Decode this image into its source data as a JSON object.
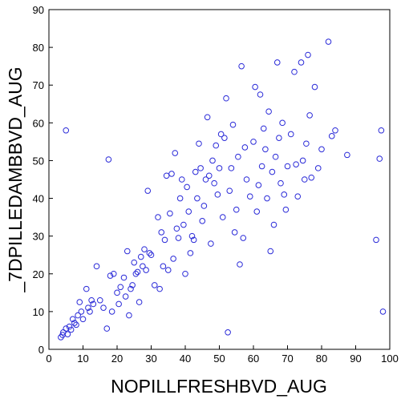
{
  "chart_data": {
    "type": "scatter",
    "xlabel": "NOPILLFRESHBVD_AUG",
    "ylabel": "_7DPILLEDAMBBVD_AUG",
    "xlim": [
      0,
      100
    ],
    "ylim": [
      0,
      90
    ],
    "xticks": [
      0,
      10,
      20,
      30,
      40,
      50,
      60,
      70,
      80,
      90,
      100
    ],
    "yticks": [
      0,
      10,
      20,
      30,
      40,
      50,
      60,
      70,
      80,
      90
    ],
    "grid": false,
    "marker": "circle-open",
    "marker_color": "#2a2ad8",
    "series": [
      {
        "points": [
          [
            3.5,
            3.2
          ],
          [
            4.0,
            3.8
          ],
          [
            4.2,
            4.5
          ],
          [
            5.0,
            5.5
          ],
          [
            5.5,
            4.0
          ],
          [
            6.0,
            6.0
          ],
          [
            6.5,
            5.2
          ],
          [
            7.0,
            8.0
          ],
          [
            7.5,
            7.0
          ],
          [
            8.0,
            6.5
          ],
          [
            8.5,
            9.0
          ],
          [
            9.0,
            12.5
          ],
          [
            9.5,
            10.0
          ],
          [
            10.0,
            8.0
          ],
          [
            11.0,
            16.0
          ],
          [
            11.5,
            11.0
          ],
          [
            12.0,
            10.0
          ],
          [
            12.5,
            13.0
          ],
          [
            13.0,
            12.0
          ],
          [
            14.0,
            22.0
          ],
          [
            15.0,
            13.0
          ],
          [
            16.0,
            11.0
          ],
          [
            17.0,
            5.5
          ],
          [
            17.5,
            50.3
          ],
          [
            18.0,
            19.5
          ],
          [
            18.5,
            10.0
          ],
          [
            19.0,
            20.0
          ],
          [
            20.0,
            15.0
          ],
          [
            20.5,
            12.0
          ],
          [
            21.0,
            16.5
          ],
          [
            22.0,
            19.0
          ],
          [
            22.5,
            14.0
          ],
          [
            23.0,
            26.0
          ],
          [
            23.5,
            9.0
          ],
          [
            24.0,
            16.0
          ],
          [
            24.5,
            17.0
          ],
          [
            25.0,
            23.0
          ],
          [
            25.5,
            20.0
          ],
          [
            26.0,
            20.5
          ],
          [
            26.5,
            12.5
          ],
          [
            27.0,
            24.5
          ],
          [
            27.5,
            22.0
          ],
          [
            28.0,
            26.5
          ],
          [
            28.5,
            21.0
          ],
          [
            29.0,
            42.0
          ],
          [
            29.5,
            25.5
          ],
          [
            30.0,
            25.0
          ],
          [
            31.0,
            17.0
          ],
          [
            32.0,
            35.0
          ],
          [
            32.5,
            16.0
          ],
          [
            33.0,
            31.0
          ],
          [
            33.5,
            22.0
          ],
          [
            34.0,
            29.0
          ],
          [
            34.5,
            46.0
          ],
          [
            35.0,
            21.0
          ],
          [
            35.5,
            36.0
          ],
          [
            36.0,
            46.5
          ],
          [
            36.5,
            24.0
          ],
          [
            37.0,
            52.0
          ],
          [
            37.5,
            32.0
          ],
          [
            38.0,
            29.5
          ],
          [
            38.5,
            40.0
          ],
          [
            39.0,
            45.0
          ],
          [
            39.5,
            33.0
          ],
          [
            40.0,
            20.0
          ],
          [
            40.5,
            43.0
          ],
          [
            41.0,
            36.5
          ],
          [
            41.5,
            25.5
          ],
          [
            42.0,
            30.0
          ],
          [
            42.5,
            29.0
          ],
          [
            43.0,
            47.0
          ],
          [
            43.5,
            40.0
          ],
          [
            44.0,
            54.5
          ],
          [
            44.5,
            48.0
          ],
          [
            45.0,
            34.0
          ],
          [
            45.5,
            38.0
          ],
          [
            46.0,
            45.0
          ],
          [
            46.5,
            61.5
          ],
          [
            47.0,
            46.0
          ],
          [
            47.5,
            28.0
          ],
          [
            48.0,
            50.0
          ],
          [
            48.5,
            44.0
          ],
          [
            49.0,
            54.0
          ],
          [
            49.5,
            41.0
          ],
          [
            50.0,
            48.0
          ],
          [
            50.5,
            57.0
          ],
          [
            51.0,
            35.0
          ],
          [
            51.5,
            56.0
          ],
          [
            52.0,
            66.5
          ],
          [
            52.5,
            4.5
          ],
          [
            53.0,
            42.0
          ],
          [
            53.5,
            48.0
          ],
          [
            54.0,
            59.5
          ],
          [
            54.5,
            31.0
          ],
          [
            55.0,
            37.0
          ],
          [
            55.5,
            51.0
          ],
          [
            56.0,
            22.5
          ],
          [
            56.5,
            75.0
          ],
          [
            57.0,
            29.5
          ],
          [
            57.5,
            53.5
          ],
          [
            58.0,
            45.0
          ],
          [
            59.0,
            40.5
          ],
          [
            60.0,
            55.0
          ],
          [
            60.5,
            69.5
          ],
          [
            61.0,
            36.5
          ],
          [
            61.5,
            43.5
          ],
          [
            62.0,
            67.5
          ],
          [
            62.5,
            48.5
          ],
          [
            63.0,
            58.5
          ],
          [
            63.5,
            53.0
          ],
          [
            64.0,
            40.0
          ],
          [
            64.5,
            63.0
          ],
          [
            65.0,
            26.0
          ],
          [
            65.5,
            47.0
          ],
          [
            66.0,
            33.0
          ],
          [
            66.5,
            51.0
          ],
          [
            67.0,
            76.0
          ],
          [
            67.5,
            56.0
          ],
          [
            68.0,
            44.0
          ],
          [
            68.5,
            60.0
          ],
          [
            69.0,
            41.0
          ],
          [
            69.5,
            37.0
          ],
          [
            70.0,
            48.5
          ],
          [
            71.0,
            57.0
          ],
          [
            72.0,
            73.5
          ],
          [
            72.5,
            49.0
          ],
          [
            73.0,
            40.5
          ],
          [
            74.0,
            76.0
          ],
          [
            74.5,
            50.0
          ],
          [
            75.0,
            45.0
          ],
          [
            75.5,
            54.5
          ],
          [
            76.0,
            78.0
          ],
          [
            76.5,
            62.0
          ],
          [
            77.0,
            45.5
          ],
          [
            78.0,
            69.5
          ],
          [
            79.0,
            48.0
          ],
          [
            80.0,
            53.0
          ],
          [
            82.0,
            81.5
          ],
          [
            83.0,
            56.5
          ],
          [
            84.0,
            58.0
          ],
          [
            87.5,
            51.5
          ],
          [
            96.0,
            29.0
          ],
          [
            97.0,
            50.5
          ],
          [
            97.5,
            58.0
          ],
          [
            98.0,
            10.0
          ],
          [
            5.0,
            58.0
          ]
        ]
      }
    ]
  }
}
